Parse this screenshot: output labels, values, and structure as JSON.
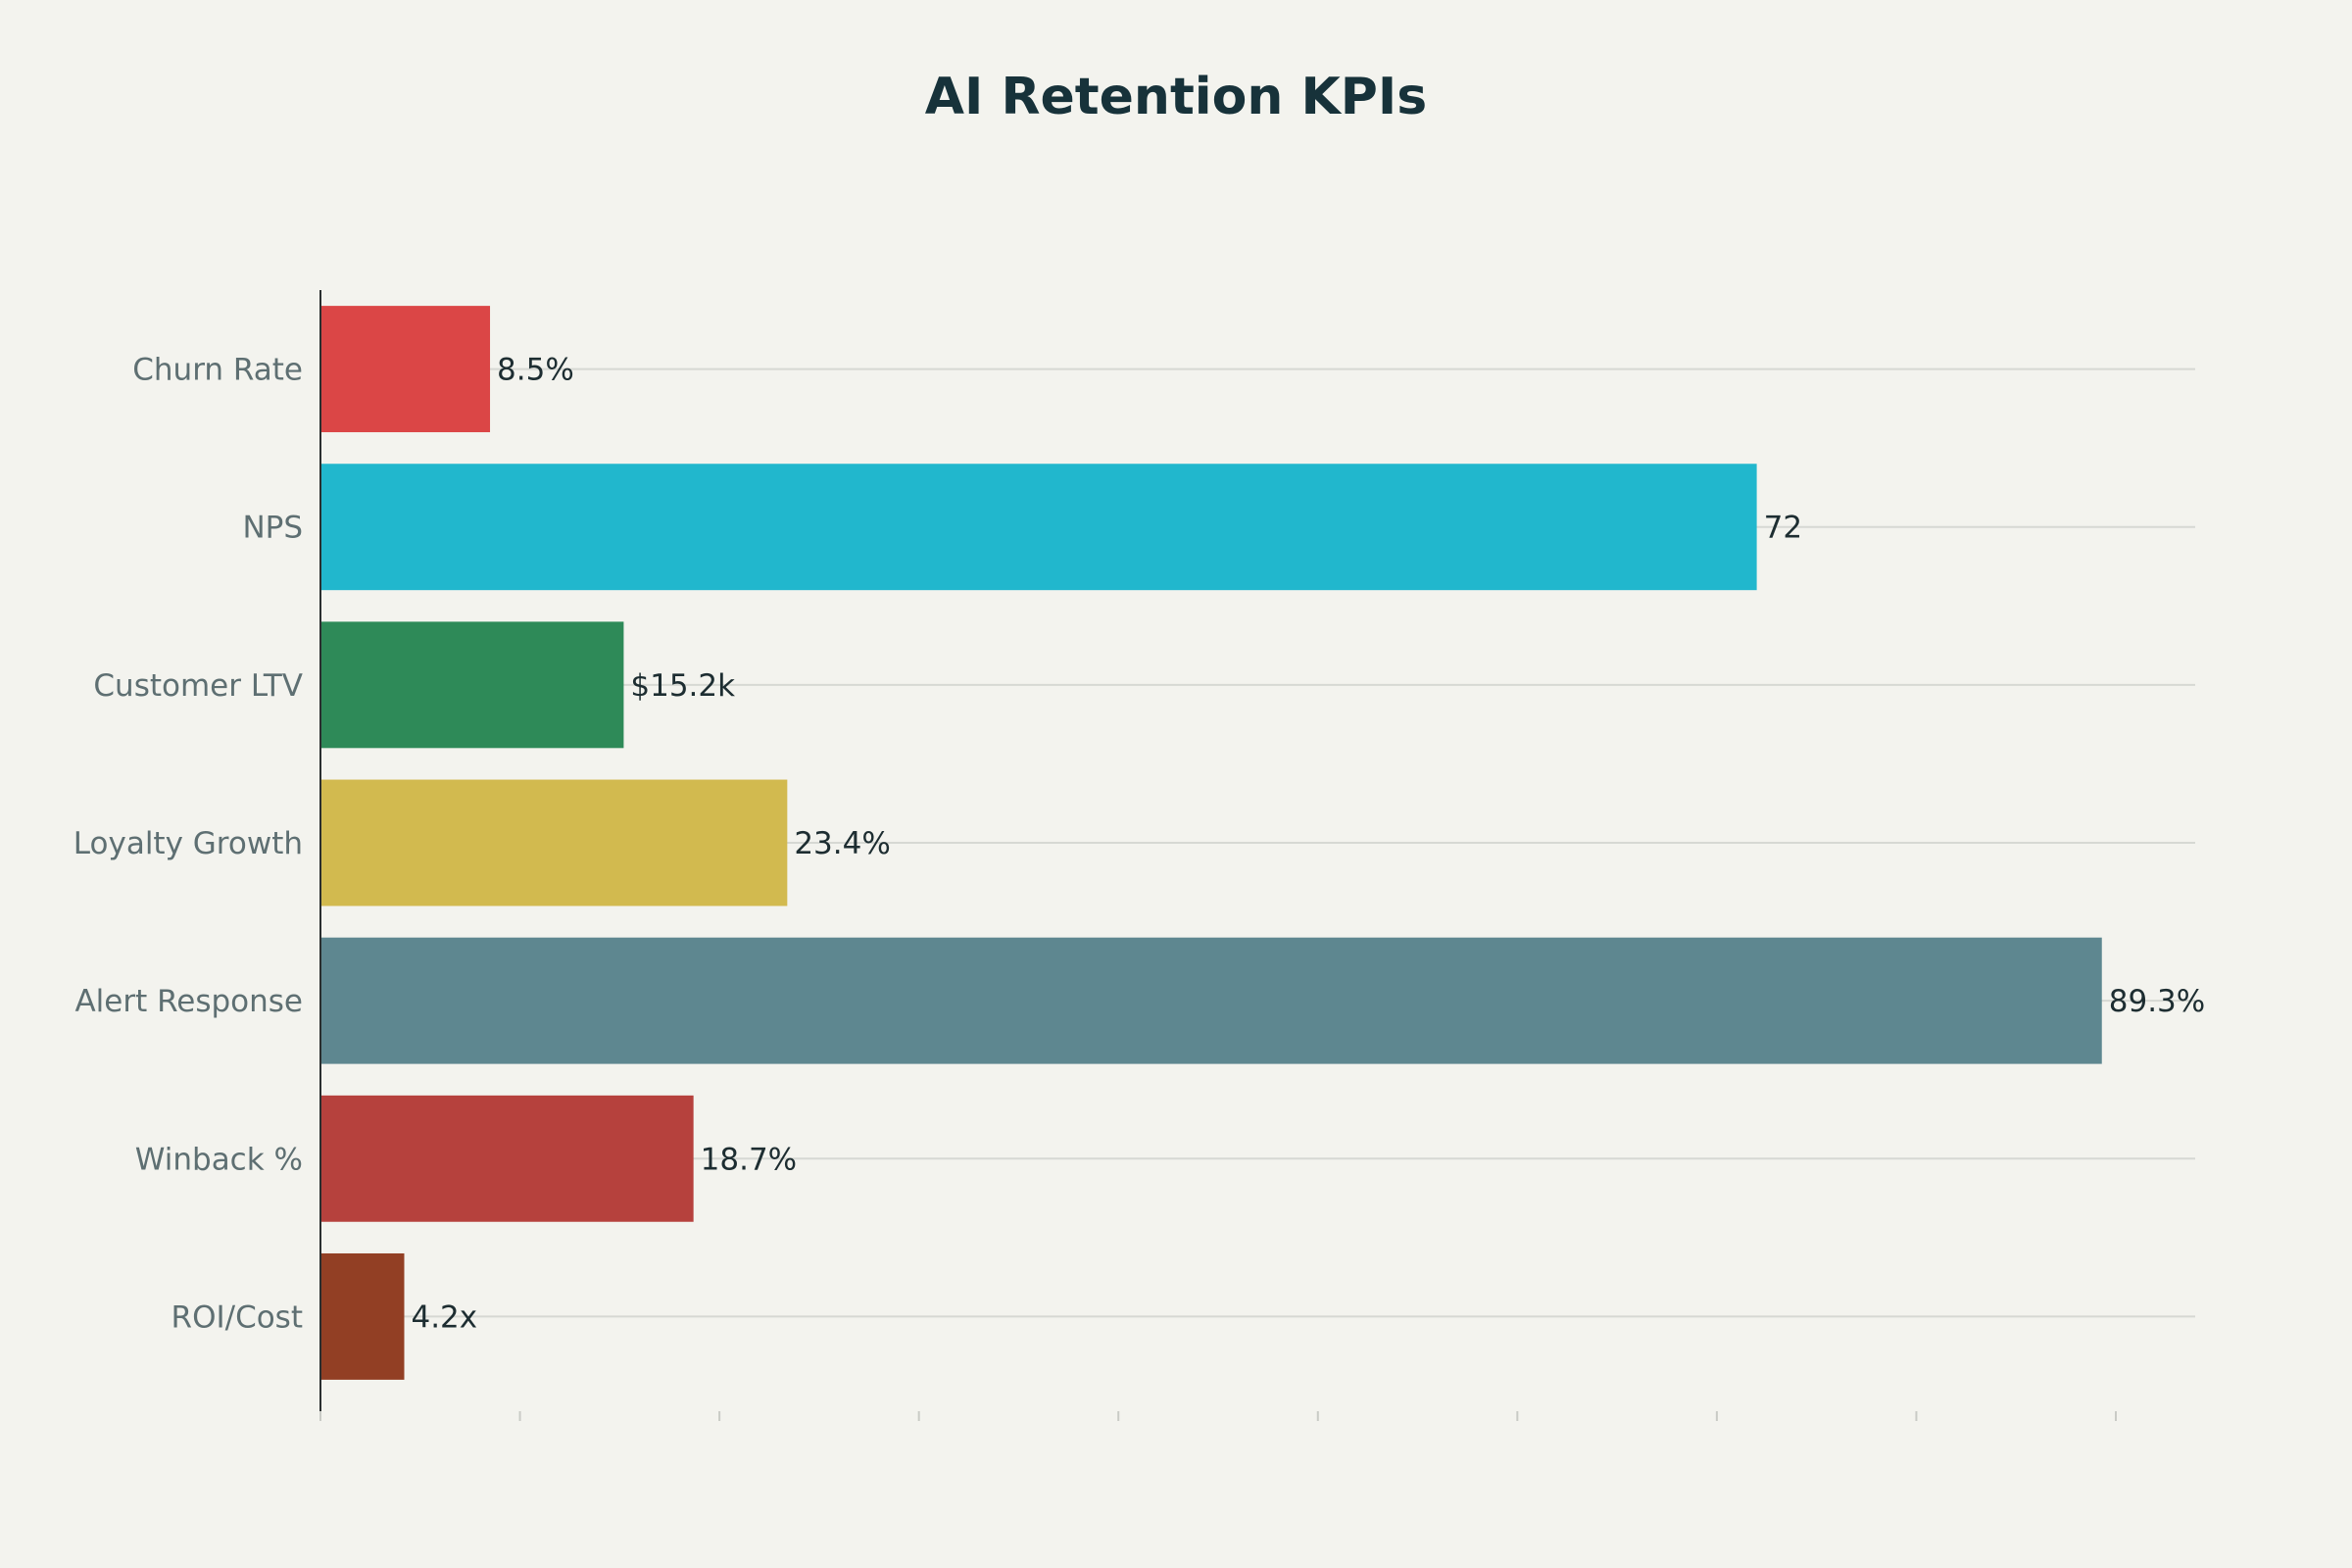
{
  "chart_data": {
    "type": "bar",
    "orientation": "horizontal",
    "title": "AI Retention KPIs",
    "xlabel": "",
    "ylabel": "",
    "xlim": [
      0,
      90
    ],
    "grid": true,
    "categories": [
      "Churn Rate",
      "NPS",
      "Customer LTV",
      "Loyalty Growth",
      "Alert Response",
      "Winback %",
      "ROI/Cost"
    ],
    "values": [
      8.5,
      72,
      15.2,
      23.4,
      89.3,
      18.7,
      4.2
    ],
    "data_labels": [
      "8.5%",
      "72",
      "$15.2k",
      "23.4%",
      "89.3%",
      "18.7%",
      "4.2x"
    ],
    "colors": [
      "#db4646",
      "#21b7cd",
      "#2e8a58",
      "#d2ba4f",
      "#5e8790",
      "#b6413d",
      "#923f24"
    ]
  }
}
